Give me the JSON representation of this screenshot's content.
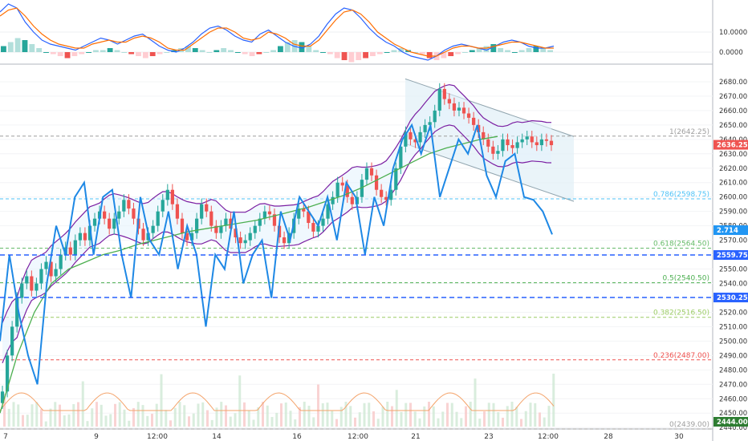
{
  "chart_data": [
    {
      "type": "bar",
      "panel": "macd_oscillator",
      "y_ticks": [
        "10.0000",
        "0.0000"
      ],
      "ylim": [
        -6,
        26
      ],
      "histogram": [
        3,
        5,
        7,
        6,
        4,
        2,
        0,
        -1,
        -2,
        -3,
        -2,
        -1,
        0,
        1,
        1,
        2,
        1,
        0,
        -1,
        -2,
        -3,
        -2,
        -1,
        0,
        1,
        2,
        3,
        2,
        1,
        0,
        1,
        2,
        1,
        0,
        -1,
        -2,
        -1,
        0,
        1,
        3,
        5,
        6,
        5,
        3,
        1,
        0,
        -1,
        -3,
        -4,
        -5,
        -4,
        -3,
        -2,
        -1,
        0,
        1,
        2,
        1,
        0,
        -1,
        -3,
        -4,
        -3,
        -2,
        -1,
        0,
        1,
        2,
        3,
        4,
        2,
        1,
        0,
        1,
        2,
        3,
        2,
        1
      ],
      "series": [
        {
          "name": "",
          "color": "#2962ff",
          "values": [
            20,
            24,
            22,
            15,
            10,
            6,
            4,
            3,
            2,
            1,
            3,
            5,
            7,
            6,
            4,
            6,
            8,
            9,
            6,
            3,
            1,
            0,
            2,
            5,
            9,
            12,
            13,
            11,
            8,
            6,
            5,
            9,
            11,
            8,
            5,
            3,
            2,
            4,
            8,
            14,
            19,
            22,
            21,
            17,
            12,
            8,
            5,
            3,
            0,
            -2,
            -3,
            -4,
            -2,
            1,
            3,
            4,
            3,
            2,
            1,
            3,
            5,
            6,
            5,
            3,
            2,
            2,
            3
          ]
        },
        {
          "name": "",
          "color": "#ff6d00",
          "values": [
            18,
            21,
            22,
            18,
            13,
            9,
            6,
            4,
            3,
            2,
            2,
            4,
            5,
            6,
            5,
            5,
            7,
            8,
            7,
            5,
            2,
            1,
            1,
            4,
            7,
            10,
            12,
            12,
            10,
            7,
            6,
            7,
            10,
            9,
            7,
            4,
            3,
            3,
            6,
            11,
            16,
            20,
            21,
            19,
            15,
            10,
            7,
            4,
            2,
            0,
            -1,
            -2,
            -2,
            0,
            2,
            3,
            3,
            2,
            2,
            3,
            4,
            5,
            5,
            4,
            3,
            2,
            2
          ]
        }
      ]
    },
    {
      "type": "candlestick",
      "panel": "price",
      "ylim": [
        2439,
        2690
      ],
      "x_ticks": [
        "7",
        "9",
        "12:00",
        "14",
        "16",
        "12:00",
        "21",
        "23",
        "12:00",
        "28",
        "30"
      ],
      "y_ticks": [
        "2680.00",
        "2670.00",
        "2660.00",
        "2650.00",
        "2640.00",
        "2630.00",
        "2620.00",
        "2610.00",
        "2600.00",
        "2590.00",
        "2580.00",
        "2570.00",
        "2560.00",
        "2550.00",
        "2540.00",
        "2530.00",
        "2520.00",
        "2510.00",
        "2500.00",
        "2490.00",
        "2480.00",
        "2470.00",
        "2460.00",
        "2450.00",
        "2440.00"
      ],
      "fib_levels": [
        {
          "label": "1(2642.25)",
          "value": 2642.25,
          "color": "#9e9e9e"
        },
        {
          "label": "0.786(2598.75)",
          "value": 2598.75,
          "color": "#4fc3f7"
        },
        {
          "label": "0.618(2564.50)",
          "value": 2564.5,
          "color": "#66bb6a"
        },
        {
          "label": "0.5(2540.50)",
          "value": 2540.5,
          "color": "#4caf50"
        },
        {
          "label": "0.382(2516.50)",
          "value": 2516.5,
          "color": "#9ccc65"
        },
        {
          "label": "0.236(2487.00)",
          "value": 2487,
          "color": "#ef5350"
        },
        {
          "label": "0(2439.00)",
          "value": 2439,
          "color": "#9e9e9e"
        }
      ],
      "price_badges": [
        {
          "label": "2636.25",
          "value": 2636.25,
          "color": "#ef5350"
        },
        {
          "label": "2.714",
          "value": 2577,
          "color": "#2196f3"
        },
        {
          "label": "2559.75",
          "value": 2559.75,
          "color": "#2962ff"
        },
        {
          "label": "2530.25",
          "value": 2530.25,
          "color": "#2962ff"
        },
        {
          "label": "2444.00",
          "value": 2444,
          "color": "#2e7d32"
        }
      ],
      "close": [
        2465,
        2490,
        2510,
        2530,
        2540,
        2545,
        2535,
        2540,
        2550,
        2555,
        2545,
        2550,
        2560,
        2565,
        2560,
        2570,
        2575,
        2570,
        2580,
        2585,
        2590,
        2585,
        2578,
        2585,
        2590,
        2598,
        2592,
        2585,
        2578,
        2570,
        2575,
        2580,
        2590,
        2598,
        2605,
        2595,
        2585,
        2575,
        2570,
        2575,
        2585,
        2595,
        2590,
        2580,
        2575,
        2580,
        2585,
        2578,
        2572,
        2568,
        2570,
        2575,
        2580,
        2585,
        2590,
        2588,
        2580,
        2572,
        2568,
        2575,
        2585,
        2592,
        2590,
        2582,
        2576,
        2580,
        2585,
        2595,
        2600,
        2610,
        2608,
        2600,
        2595,
        2600,
        2612,
        2620,
        2615,
        2605,
        2600,
        2598,
        2605,
        2620,
        2635,
        2645,
        2640,
        2638,
        2645,
        2650,
        2652,
        2660,
        2675,
        2668,
        2665,
        2660,
        2662,
        2658,
        2655,
        2650,
        2645,
        2640,
        2635,
        2630,
        2632,
        2640,
        2636,
        2634,
        2638,
        2640,
        2642,
        2638,
        2636,
        2640,
        2639,
        2636
      ],
      "overlays": {
        "ema_green": [
          2450,
          2490,
          2520,
          2540,
          2550,
          2555,
          2560,
          2563,
          2567,
          2570,
          2573,
          2576,
          2578,
          2580,
          2582,
          2584,
          2587,
          2590,
          2593,
          2597,
          2601,
          2606,
          2612,
          2618,
          2624,
          2630,
          2634,
          2637,
          2640,
          2642
        ],
        "stoch_blue": [
          2500,
          2560,
          2520,
          2490,
          2470,
          2540,
          2580,
          2560,
          2600,
          2610,
          2560,
          2600,
          2605,
          2560,
          2530,
          2600,
          2570,
          2560,
          2590,
          2550,
          2580,
          2560,
          2510,
          2560,
          2550,
          2590,
          2540,
          2560,
          2570,
          2530,
          2590,
          2570,
          2600,
          2590,
          2580,
          2600,
          2570,
          2610,
          2600,
          2560,
          2600,
          2580,
          2620,
          2640,
          2650,
          2630,
          2650,
          2600,
          2620,
          2640,
          2630,
          2650,
          2615,
          2600,
          2625,
          2630,
          2600,
          2598,
          2590,
          2574
        ]
      }
    }
  ]
}
